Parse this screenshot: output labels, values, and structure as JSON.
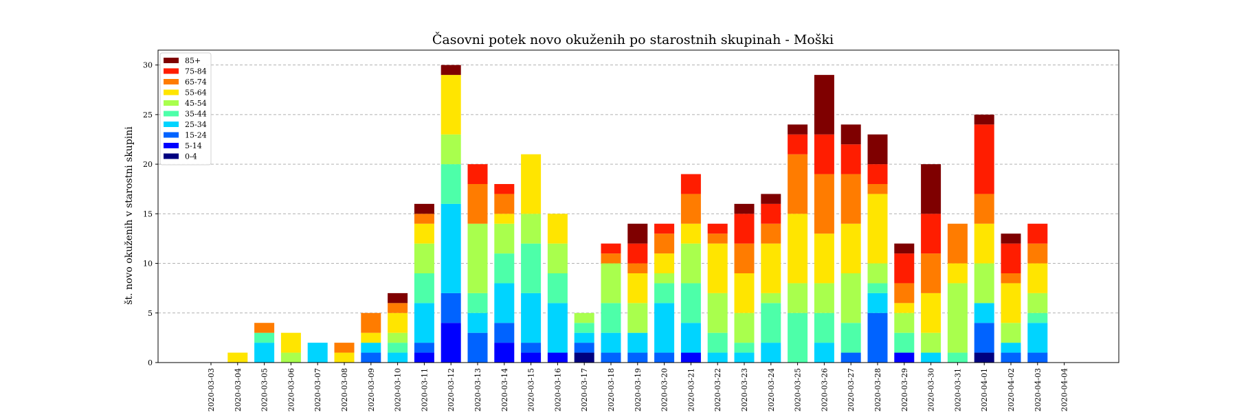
{
  "chart_data": {
    "type": "bar",
    "stacked": true,
    "title": "Časovni potek novo okuženih po starostnih skupinah - Moški",
    "xlabel": "",
    "ylabel": "št. novo okuženih v starostni skupini",
    "ylim": [
      0,
      31.5
    ],
    "yticks": [
      0,
      5,
      10,
      15,
      20,
      25,
      30
    ],
    "grid": "y-dashed",
    "legend_position": "top-left",
    "categories": [
      "2020-03-03",
      "2020-03-04",
      "2020-03-05",
      "2020-03-06",
      "2020-03-07",
      "2020-03-08",
      "2020-03-09",
      "2020-03-10",
      "2020-03-11",
      "2020-03-12",
      "2020-03-13",
      "2020-03-14",
      "2020-03-15",
      "2020-03-16",
      "2020-03-17",
      "2020-03-18",
      "2020-03-19",
      "2020-03-20",
      "2020-03-21",
      "2020-03-22",
      "2020-03-23",
      "2020-03-24",
      "2020-03-25",
      "2020-03-26",
      "2020-03-27",
      "2020-03-28",
      "2020-03-29",
      "2020-03-30",
      "2020-03-31",
      "2020-04-01",
      "2020-04-02",
      "2020-04-03",
      "2020-04-04"
    ],
    "series": [
      {
        "name": "0-4",
        "color": "#00007f",
        "values": [
          0,
          0,
          0,
          0,
          0,
          0,
          0,
          0,
          0,
          0,
          0,
          0,
          0,
          0,
          1,
          0,
          0,
          0,
          0,
          0,
          0,
          0,
          0,
          0,
          0,
          0,
          0,
          0,
          0,
          1,
          0,
          0,
          0
        ]
      },
      {
        "name": "5-14",
        "color": "#0000ff",
        "values": [
          0,
          0,
          0,
          0,
          0,
          0,
          0,
          0,
          1,
          4,
          0,
          2,
          1,
          1,
          0,
          0,
          0,
          0,
          1,
          0,
          0,
          0,
          0,
          0,
          0,
          0,
          1,
          0,
          0,
          0,
          0,
          0,
          0
        ]
      },
      {
        "name": "15-24",
        "color": "#0063ff",
        "values": [
          0,
          0,
          0,
          0,
          0,
          0,
          1,
          0,
          1,
          3,
          3,
          2,
          1,
          0,
          1,
          1,
          1,
          1,
          0,
          0,
          0,
          0,
          0,
          0,
          1,
          5,
          0,
          0,
          0,
          3,
          1,
          1,
          0
        ]
      },
      {
        "name": "25-34",
        "color": "#00d4ff",
        "values": [
          0,
          0,
          2,
          0,
          2,
          0,
          1,
          1,
          4,
          9,
          2,
          4,
          5,
          5,
          1,
          2,
          2,
          5,
          3,
          1,
          1,
          2,
          0,
          2,
          0,
          2,
          0,
          1,
          0,
          2,
          1,
          3,
          0
        ]
      },
      {
        "name": "35-44",
        "color": "#4dffa9",
        "values": [
          0,
          0,
          1,
          0,
          0,
          0,
          0,
          1,
          3,
          4,
          2,
          3,
          5,
          3,
          1,
          3,
          0,
          2,
          4,
          2,
          1,
          4,
          5,
          3,
          3,
          1,
          2,
          0,
          1,
          0,
          0,
          1,
          0
        ]
      },
      {
        "name": "45-54",
        "color": "#a9ff4d",
        "values": [
          0,
          0,
          0,
          1,
          0,
          0,
          0,
          1,
          3,
          3,
          7,
          3,
          3,
          3,
          1,
          4,
          3,
          1,
          4,
          4,
          3,
          1,
          3,
          3,
          5,
          2,
          2,
          2,
          7,
          4,
          2,
          2,
          0
        ]
      },
      {
        "name": "55-64",
        "color": "#ffe500",
        "values": [
          0,
          1,
          0,
          2,
          0,
          1,
          1,
          2,
          2,
          6,
          0,
          1,
          6,
          3,
          0,
          0,
          3,
          2,
          2,
          5,
          4,
          5,
          7,
          5,
          5,
          7,
          1,
          4,
          2,
          4,
          4,
          3,
          0
        ]
      },
      {
        "name": "65-74",
        "color": "#ff7c00",
        "values": [
          0,
          0,
          1,
          0,
          0,
          1,
          2,
          1,
          1,
          0,
          4,
          2,
          0,
          0,
          0,
          1,
          1,
          2,
          3,
          1,
          3,
          2,
          6,
          6,
          5,
          1,
          2,
          4,
          4,
          3,
          1,
          2,
          0
        ]
      },
      {
        "name": "75-84",
        "color": "#ff1d00",
        "values": [
          0,
          0,
          0,
          0,
          0,
          0,
          0,
          0,
          0,
          0,
          2,
          1,
          0,
          0,
          0,
          1,
          2,
          1,
          2,
          1,
          3,
          2,
          2,
          4,
          3,
          2,
          3,
          4,
          0,
          7,
          3,
          2,
          0
        ]
      },
      {
        "name": "85+",
        "color": "#7f0000",
        "values": [
          0,
          0,
          0,
          0,
          0,
          0,
          0,
          1,
          1,
          1,
          0,
          0,
          0,
          0,
          0,
          0,
          2,
          0,
          0,
          0,
          1,
          1,
          1,
          6,
          2,
          3,
          1,
          5,
          0,
          1,
          1,
          0,
          0
        ]
      }
    ]
  }
}
